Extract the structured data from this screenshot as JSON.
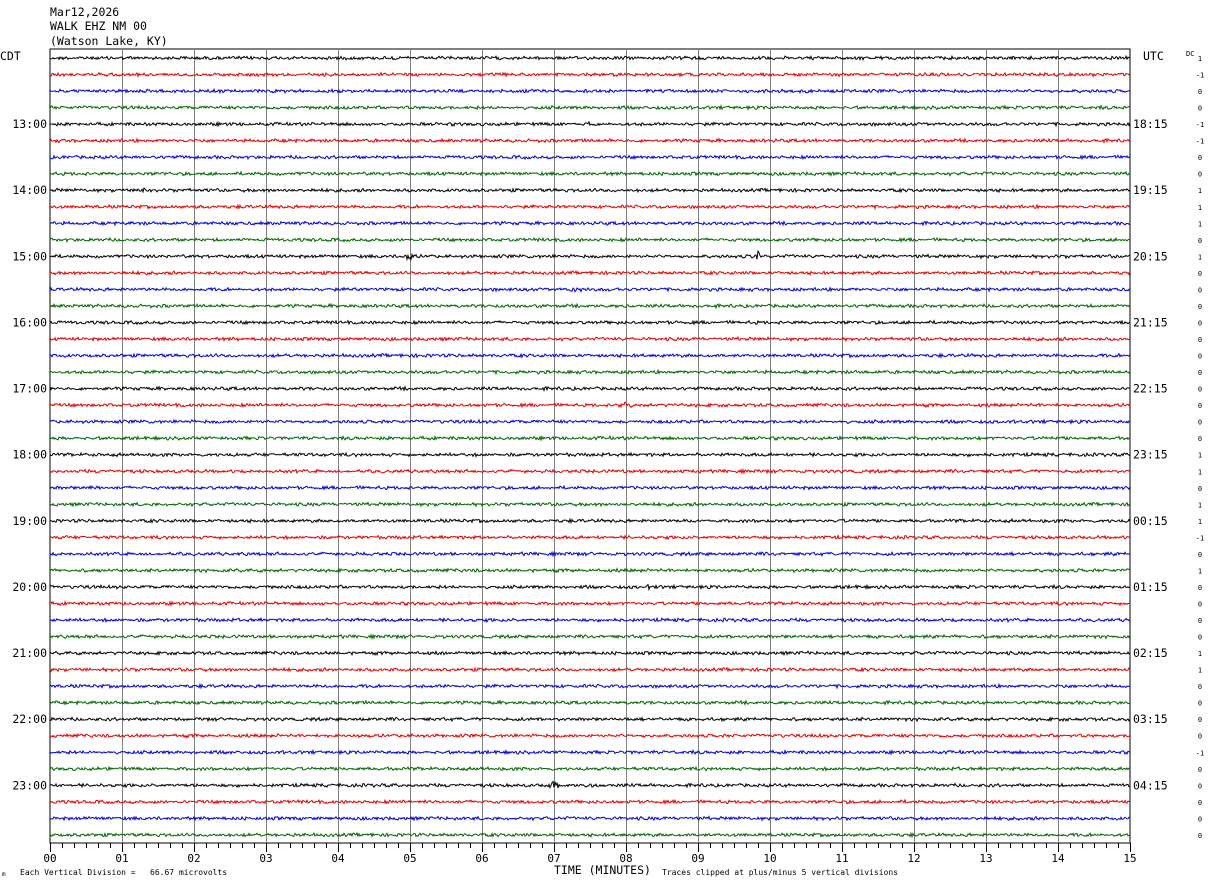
{
  "header": {
    "date": "Mar12,2026",
    "station": "WALK EHZ NM 00",
    "location": "(Watson Lake, KY)"
  },
  "left_tz_label": "CDT",
  "right_tz_label": "UTC",
  "dc_label": "DC",
  "footer": {
    "scale_label": "Each Vertical Division =   66.67 microvolts",
    "clip_label": "Traces clipped at plus/minus 5 vertical divisions",
    "corner_mark": "m"
  },
  "colors": {
    "trace_cycle": [
      "#000000",
      "#e00000",
      "#0000d0",
      "#006400"
    ],
    "grid": "#808080",
    "frame": "#000000"
  },
  "chart_data": {
    "type": "line",
    "title": "WALK EHZ NM 00",
    "xlabel": "TIME (MINUTES)",
    "ylabel": "",
    "xlim": [
      0,
      15
    ],
    "x_ticks": [
      "00",
      "01",
      "02",
      "03",
      "04",
      "05",
      "06",
      "07",
      "08",
      "09",
      "10",
      "11",
      "12",
      "13",
      "14",
      "15"
    ],
    "minutes_per_line": 15,
    "trace_count": 48,
    "left_hour_labels": [
      "13:00",
      "14:00",
      "15:00",
      "16:00",
      "17:00",
      "18:00",
      "19:00",
      "20:00",
      "21:00",
      "22:00",
      "23:00"
    ],
    "right_hour_labels": [
      "18:15",
      "19:15",
      "20:15",
      "21:15",
      "22:15",
      "23:15",
      "00:15",
      "01:15",
      "02:15",
      "03:15",
      "04:15"
    ],
    "first_labeled_trace": 4,
    "traces_per_hour": 4,
    "dc_offsets": [
      1,
      -1,
      0,
      0,
      -1,
      -1,
      0,
      0,
      1,
      1,
      1,
      0,
      1,
      0,
      0,
      0,
      0,
      0,
      0,
      0,
      0,
      0,
      0,
      0,
      1,
      1,
      0,
      1,
      1,
      -1,
      0,
      1,
      0,
      0,
      0,
      0,
      1,
      1,
      0,
      0,
      0,
      0,
      -1,
      0,
      0,
      0,
      0,
      0
    ],
    "events": [
      {
        "trace": 4,
        "minute": 7.5,
        "amp": 2.0
      },
      {
        "trace": 8,
        "minute": 1.3,
        "amp": 1.8
      },
      {
        "trace": 14,
        "minute": 4.2,
        "amp": 1.6
      },
      {
        "trace": 12,
        "minute": 4.97,
        "amp": 4.5
      },
      {
        "trace": 12,
        "minute": 9.83,
        "amp": 4.5
      },
      {
        "trace": 14,
        "minute": 7.3,
        "amp": 2.5
      },
      {
        "trace": 21,
        "minute": 8.0,
        "amp": 4.0
      },
      {
        "trace": 22,
        "minute": 8.2,
        "amp": 1.6
      },
      {
        "trace": 26,
        "minute": 0.6,
        "amp": 1.6
      },
      {
        "trace": 28,
        "minute": 8.9,
        "amp": 1.5
      },
      {
        "trace": 32,
        "minute": 8.3,
        "amp": 1.4
      },
      {
        "trace": 44,
        "minute": 7.0,
        "amp": 3.5
      },
      {
        "trace": 44,
        "minute": 7.55,
        "amp": 3.0
      },
      {
        "trace": 36,
        "minute": 5.5,
        "amp": 1.3
      },
      {
        "trace": 40,
        "minute": 1.9,
        "amp": 1.3
      }
    ]
  }
}
